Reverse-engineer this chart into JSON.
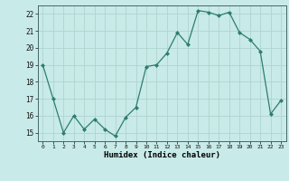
{
  "x": [
    0,
    1,
    2,
    3,
    4,
    5,
    6,
    7,
    8,
    9,
    10,
    11,
    12,
    13,
    14,
    15,
    16,
    17,
    18,
    19,
    20,
    21,
    22,
    23
  ],
  "y": [
    19,
    17,
    15,
    16,
    15.2,
    15.8,
    15.2,
    14.8,
    15.9,
    16.5,
    18.9,
    19.0,
    19.7,
    20.9,
    20.2,
    22.2,
    22.1,
    21.9,
    22.1,
    20.9,
    20.5,
    19.8,
    16.1,
    16.9
  ],
  "line_color": "#2e7d6e",
  "bg_color": "#c8eae8",
  "grid_color": "#b0d4d0",
  "xlabel": "Humidex (Indice chaleur)",
  "ylim": [
    14.5,
    22.5
  ],
  "yticks": [
    15,
    16,
    17,
    18,
    19,
    20,
    21,
    22
  ],
  "xticks": [
    0,
    1,
    2,
    3,
    4,
    5,
    6,
    7,
    8,
    9,
    10,
    11,
    12,
    13,
    14,
    15,
    16,
    17,
    18,
    19,
    20,
    21,
    22,
    23
  ],
  "figsize": [
    3.2,
    2.0
  ],
  "dpi": 100
}
